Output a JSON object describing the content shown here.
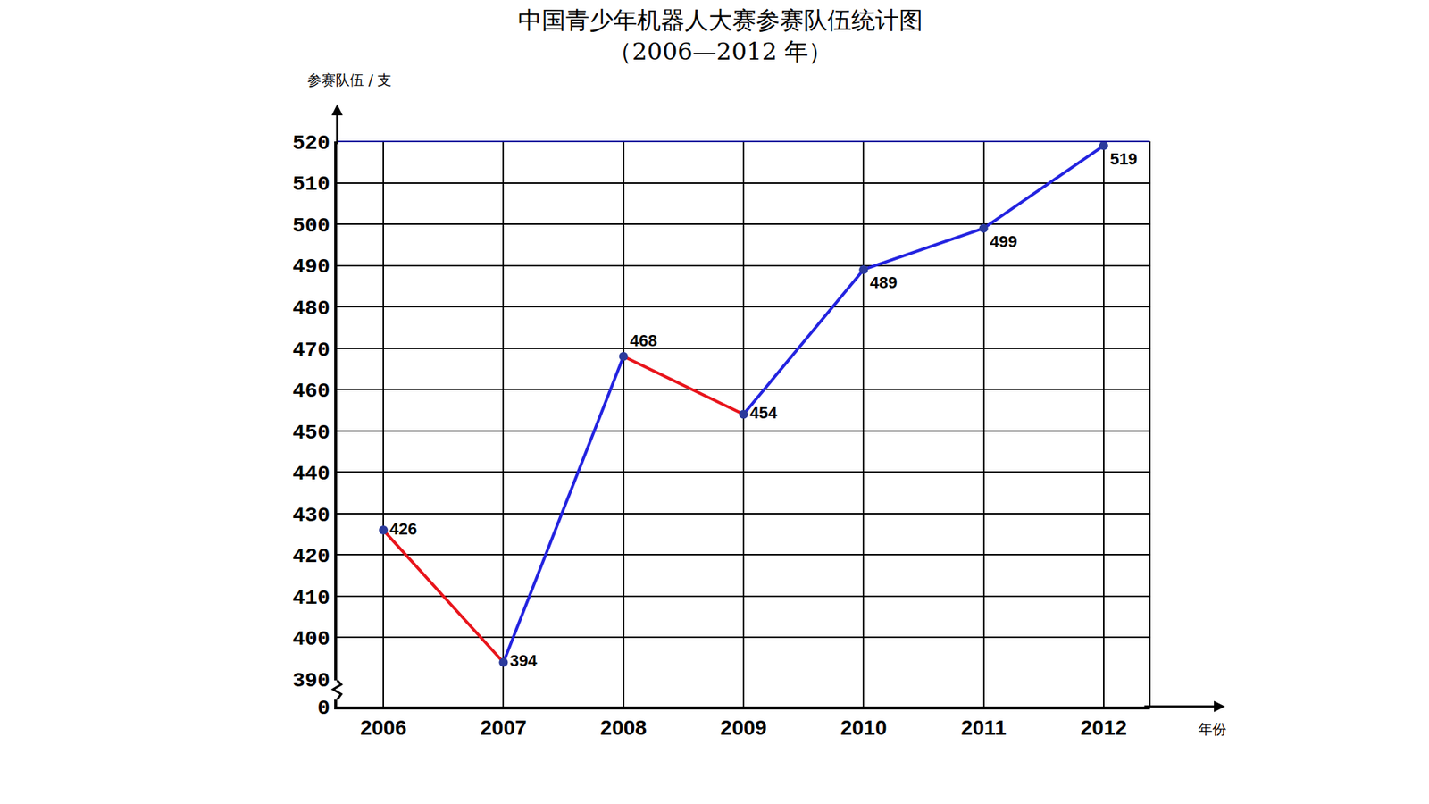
{
  "chart_data": {
    "type": "line",
    "title": "中国青少年机器人大赛参赛队伍统计图",
    "subtitle": "（2006—2012 年）",
    "xlabel": "年份",
    "ylabel": "参赛队伍 / 支",
    "categories": [
      "2006",
      "2007",
      "2008",
      "2009",
      "2010",
      "2011",
      "2012"
    ],
    "values": [
      426,
      394,
      468,
      454,
      489,
      499,
      519
    ],
    "colors": [
      "#e8141b",
      "#2323e0",
      "#e8141b",
      "#2323e0",
      "#2323e0",
      "#2323e0"
    ],
    "color": "#2b3a9c",
    "marker": "circle",
    "ylim": [
      390,
      520
    ],
    "yticks": [
      390,
      400,
      410,
      420,
      430,
      440,
      450,
      460,
      470,
      480,
      490,
      500,
      510,
      520
    ],
    "y2lim": [
      0,
      390
    ],
    "y2ticks": [
      0
    ],
    "grid": true,
    "data_labels": true
  }
}
